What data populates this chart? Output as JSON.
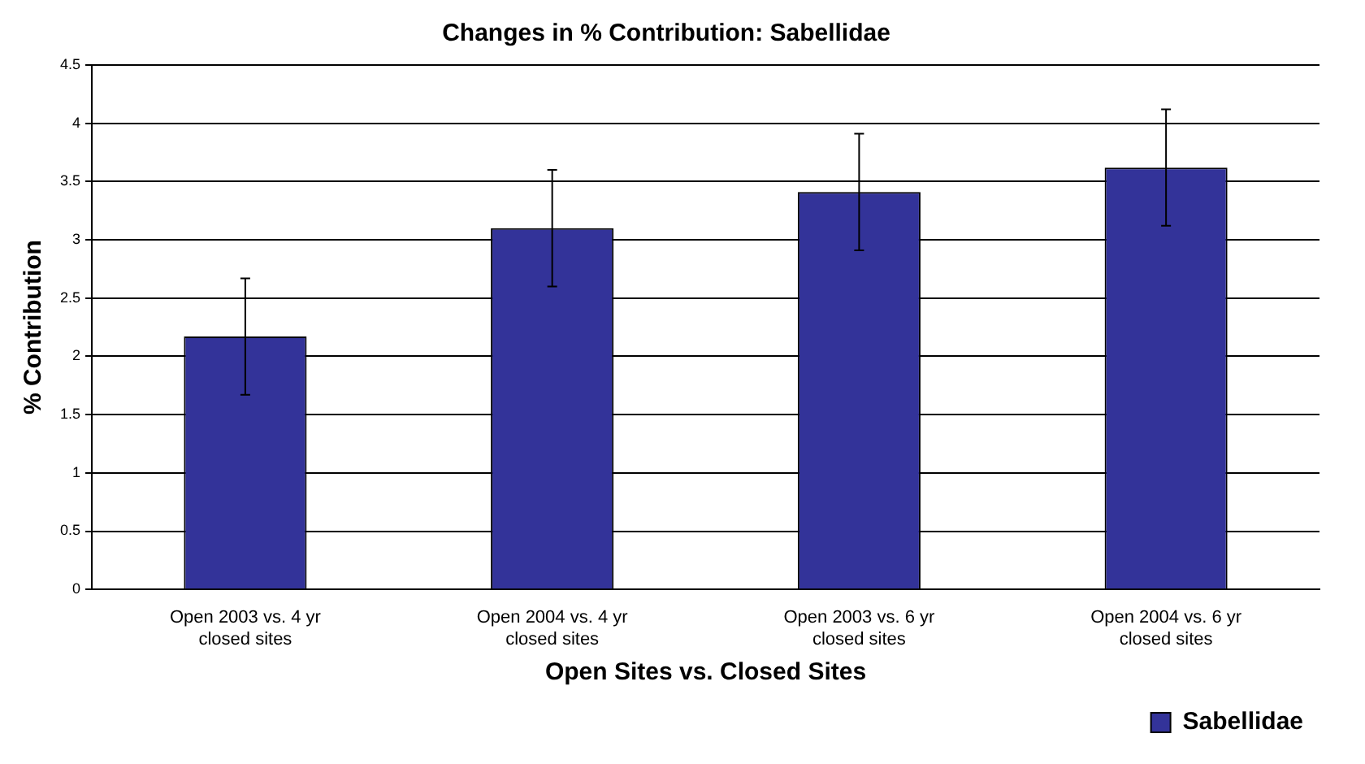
{
  "chart_data": {
    "type": "bar",
    "title": "Changes in % Contribution: Sabellidae",
    "xlabel": "Open Sites vs. Closed Sites",
    "ylabel": "% Contribution",
    "categories": [
      "Open 2003 vs. 4 yr closed sites",
      "Open 2004 vs. 4 yr closed sites",
      "Open 2003 vs. 6 yr closed sites",
      "Open 2004 vs. 6 yr closed sites"
    ],
    "series": [
      {
        "name": "Sabellidae",
        "color": "#333399",
        "values": [
          2.17,
          3.1,
          3.41,
          3.62
        ],
        "errors": [
          0.5,
          0.5,
          0.5,
          0.5
        ]
      }
    ],
    "ylim": [
      0,
      4.5
    ],
    "yticks": [
      0,
      0.5,
      1,
      1.5,
      2,
      2.5,
      3,
      3.5,
      4,
      4.5
    ],
    "grid": "y",
    "legend": "bottom right"
  }
}
